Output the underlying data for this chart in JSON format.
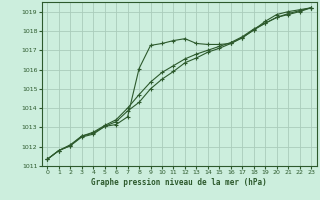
{
  "title": "Graphe pression niveau de la mer (hPa)",
  "bg_color": "#cceedd",
  "grid_color": "#aaccbb",
  "line_color": "#2d5a2d",
  "xlim": [
    -0.5,
    23.5
  ],
  "ylim": [
    1011,
    1019.5
  ],
  "xticks": [
    0,
    1,
    2,
    3,
    4,
    5,
    6,
    7,
    8,
    9,
    10,
    11,
    12,
    13,
    14,
    15,
    16,
    17,
    18,
    19,
    20,
    21,
    22,
    23
  ],
  "yticks": [
    1011,
    1012,
    1013,
    1014,
    1015,
    1016,
    1017,
    1018,
    1019
  ],
  "series1_x": [
    0,
    1,
    2,
    3,
    4,
    5,
    6,
    7,
    8,
    9,
    10,
    11,
    12,
    13,
    14,
    15,
    16,
    17,
    18,
    19,
    20,
    21,
    22,
    23
  ],
  "series1_y": [
    1011.35,
    1011.8,
    1012.05,
    1012.55,
    1012.7,
    1013.05,
    1013.15,
    1013.55,
    1016.05,
    1017.25,
    1017.35,
    1017.5,
    1017.6,
    1017.35,
    1017.3,
    1017.3,
    1017.35,
    1017.65,
    1018.05,
    1018.5,
    1018.85,
    1019.0,
    1019.1,
    1019.2
  ],
  "series2_x": [
    0,
    1,
    2,
    3,
    4,
    5,
    6,
    7,
    8,
    9,
    10,
    11,
    12,
    13,
    14,
    15,
    16,
    17,
    18,
    19,
    20,
    21,
    22,
    23
  ],
  "series2_y": [
    1011.35,
    1011.8,
    1012.05,
    1012.5,
    1012.65,
    1013.05,
    1013.3,
    1013.85,
    1014.3,
    1015.0,
    1015.5,
    1015.9,
    1016.35,
    1016.6,
    1016.9,
    1017.1,
    1017.35,
    1017.65,
    1018.05,
    1018.4,
    1018.7,
    1018.9,
    1019.05,
    1019.2
  ],
  "series3_x": [
    0,
    1,
    2,
    3,
    4,
    5,
    6,
    7,
    8,
    9,
    10,
    11,
    12,
    13,
    14,
    15,
    16,
    17,
    18,
    19,
    20,
    21,
    22,
    23
  ],
  "series3_y": [
    1011.35,
    1011.8,
    1012.1,
    1012.55,
    1012.75,
    1013.1,
    1013.4,
    1014.0,
    1014.7,
    1015.35,
    1015.85,
    1016.2,
    1016.55,
    1016.8,
    1017.0,
    1017.2,
    1017.4,
    1017.7,
    1018.1,
    1018.4,
    1018.7,
    1018.85,
    1019.0,
    1019.2
  ]
}
